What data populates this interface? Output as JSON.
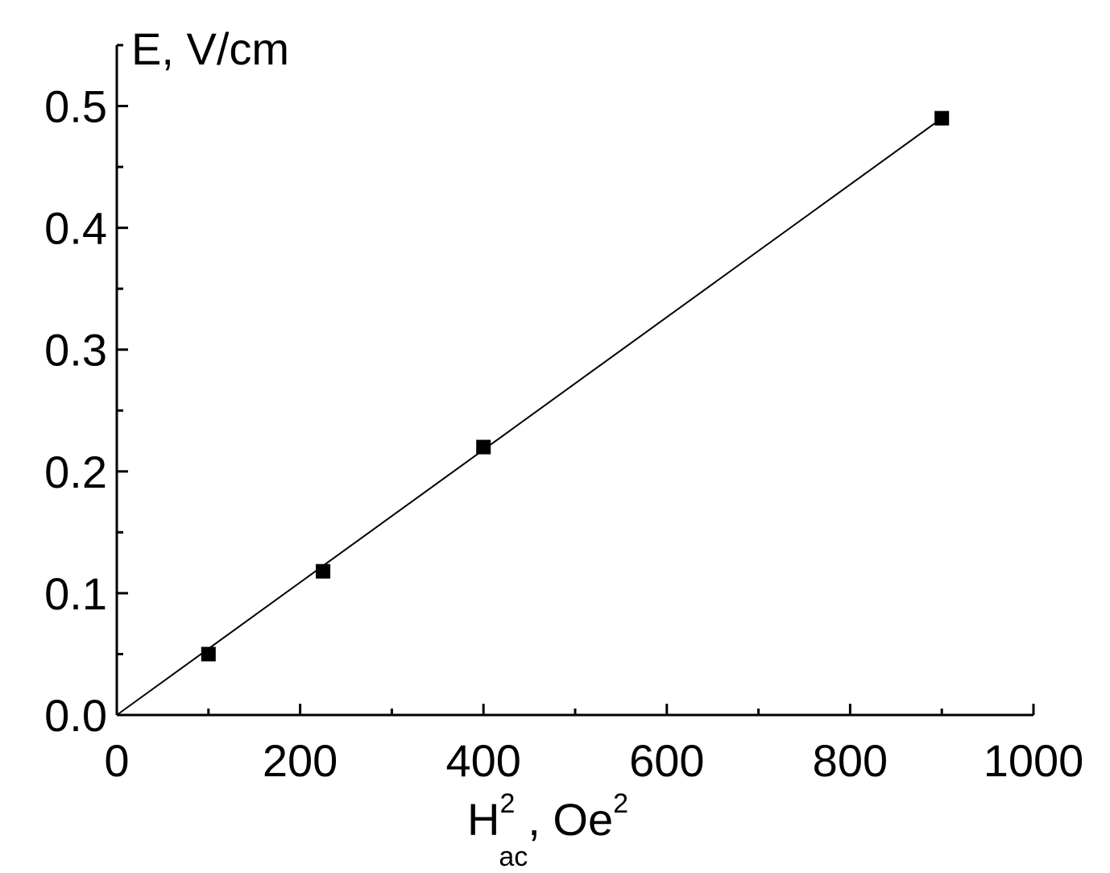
{
  "chart_data": {
    "type": "scatter",
    "xlabel": {
      "base": "H",
      "sup": "2",
      "sub": "ac",
      "rest": ", Oe",
      "rest_sup": "2"
    },
    "ylabel": "E, V/cm",
    "xlim": [
      0,
      1000
    ],
    "ylim": [
      0,
      0.55
    ],
    "x_ticks": [
      0,
      200,
      400,
      600,
      800,
      1000
    ],
    "x_tick_labels": [
      "0",
      "200",
      "400",
      "600",
      "800",
      "1000"
    ],
    "x_minor_step": 100,
    "y_ticks": [
      0.0,
      0.1,
      0.2,
      0.3,
      0.4,
      0.5
    ],
    "y_tick_labels": [
      "0.0",
      "0.1",
      "0.2",
      "0.3",
      "0.4",
      "0.5"
    ],
    "y_minor_step": 0.05,
    "grid": false,
    "series": [
      {
        "marker": "square",
        "color": "#000000",
        "x": [
          100,
          225,
          400,
          900
        ],
        "y": [
          0.05,
          0.118,
          0.22,
          0.49
        ]
      }
    ],
    "fit_line": {
      "color": "#000000",
      "x": [
        0,
        900
      ],
      "y": [
        0,
        0.49
      ]
    }
  }
}
